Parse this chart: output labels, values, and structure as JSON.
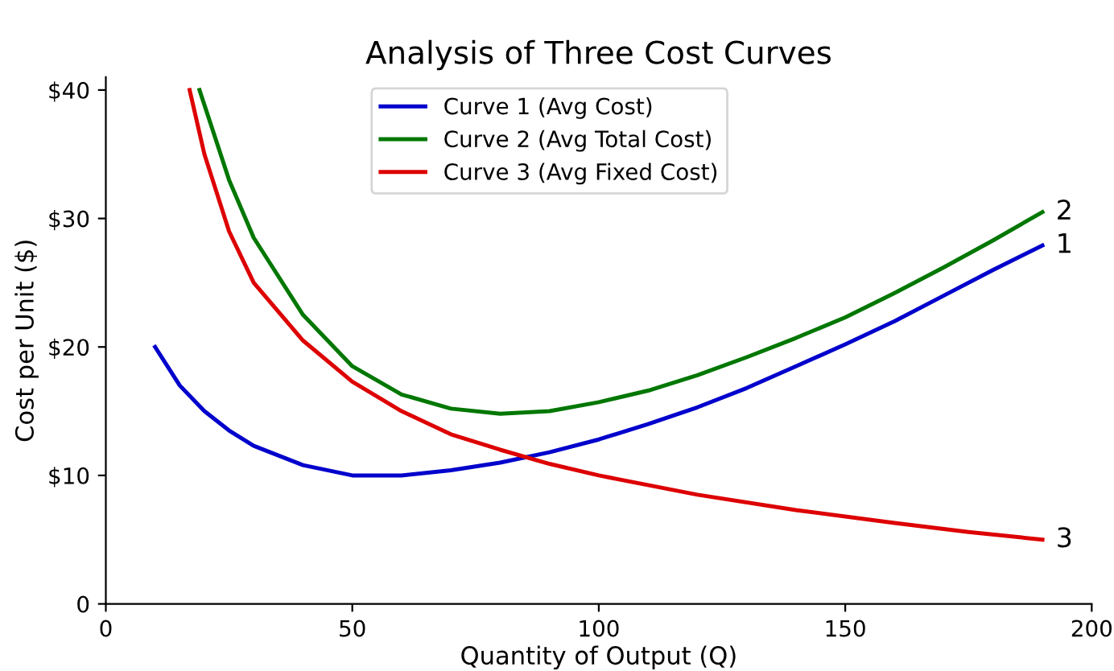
{
  "chart_data": {
    "type": "line",
    "title": "Analysis of Three Cost Curves",
    "xlabel": "Quantity of Output (Q)",
    "ylabel": "Cost per Unit ($)",
    "xlim": [
      0,
      200
    ],
    "ylim": [
      0,
      41
    ],
    "xticks": [
      0,
      50,
      100,
      150,
      200
    ],
    "yticks": [
      0,
      {
        "value": 10,
        "label": "$10"
      },
      {
        "value": 20,
        "label": "$20"
      },
      {
        "value": 30,
        "label": "$30"
      },
      {
        "value": 40,
        "label": "$40"
      }
    ],
    "grid": false,
    "legend": "top",
    "marker": "none",
    "line_style": "solid",
    "series": [
      {
        "name": "Curve 1 (Avg Cost)",
        "color": "#0000cc",
        "x": [
          10,
          15,
          20,
          25,
          30,
          40,
          50,
          60,
          70,
          80,
          90,
          100,
          110,
          120,
          130,
          140,
          150,
          160,
          170,
          180,
          190
        ],
        "values": [
          20,
          17,
          15,
          13.5,
          12.3,
          10.8,
          10,
          10,
          10.4,
          11,
          11.8,
          12.8,
          14,
          15.3,
          16.8,
          18.5,
          20.2,
          22,
          24,
          26,
          27.9
        ]
      },
      {
        "name": "Curve 2 (Avg Total Cost)",
        "color": "#007700",
        "x": [
          19,
          25,
          30,
          40,
          50,
          60,
          70,
          80,
          90,
          100,
          110,
          120,
          130,
          140,
          150,
          160,
          170,
          180,
          190
        ],
        "values": [
          40,
          33,
          28.5,
          22.5,
          18.5,
          16.3,
          15.2,
          14.8,
          15,
          15.7,
          16.6,
          17.8,
          19.2,
          20.7,
          22.3,
          24.2,
          26.2,
          28.3,
          30.5
        ]
      },
      {
        "name": "Curve 3 (Avg Fixed Cost)",
        "color": "#dd0000",
        "x": [
          17,
          20,
          25,
          30,
          40,
          50,
          60,
          70,
          80,
          90,
          100,
          120,
          140,
          160,
          175,
          190
        ],
        "values": [
          40,
          35,
          29,
          25,
          20.5,
          17.3,
          15,
          13.2,
          12,
          10.9,
          10,
          8.5,
          7.3,
          6.3,
          5.6,
          5
        ]
      }
    ],
    "annotations": [
      "1",
      "2",
      "3"
    ]
  }
}
